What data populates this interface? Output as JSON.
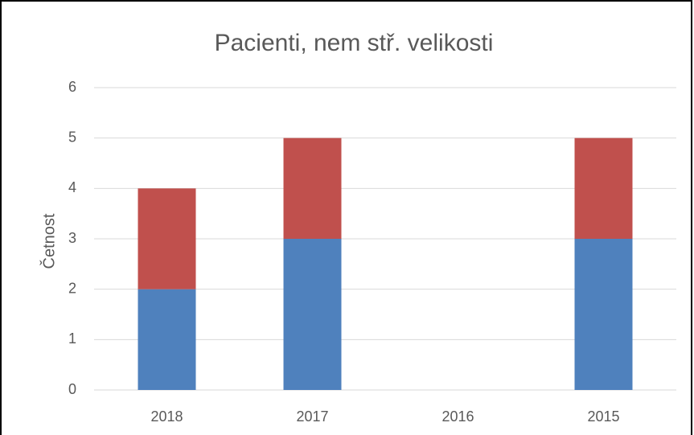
{
  "chart_data": {
    "type": "stacked_bar",
    "title": "Pacienti, nem stř. velikosti",
    "y_label": "Četnost",
    "categories": [
      "2018",
      "2017",
      "2016",
      "2015"
    ],
    "series": [
      {
        "color": "#4f81bd",
        "values": [
          2,
          3,
          0,
          3
        ]
      },
      {
        "color": "#c0504d",
        "values": [
          2,
          2,
          0,
          2
        ]
      }
    ],
    "ylim": [
      0,
      6
    ],
    "yticks": [
      0,
      1,
      2,
      3,
      4,
      5,
      6
    ],
    "grid": true
  }
}
